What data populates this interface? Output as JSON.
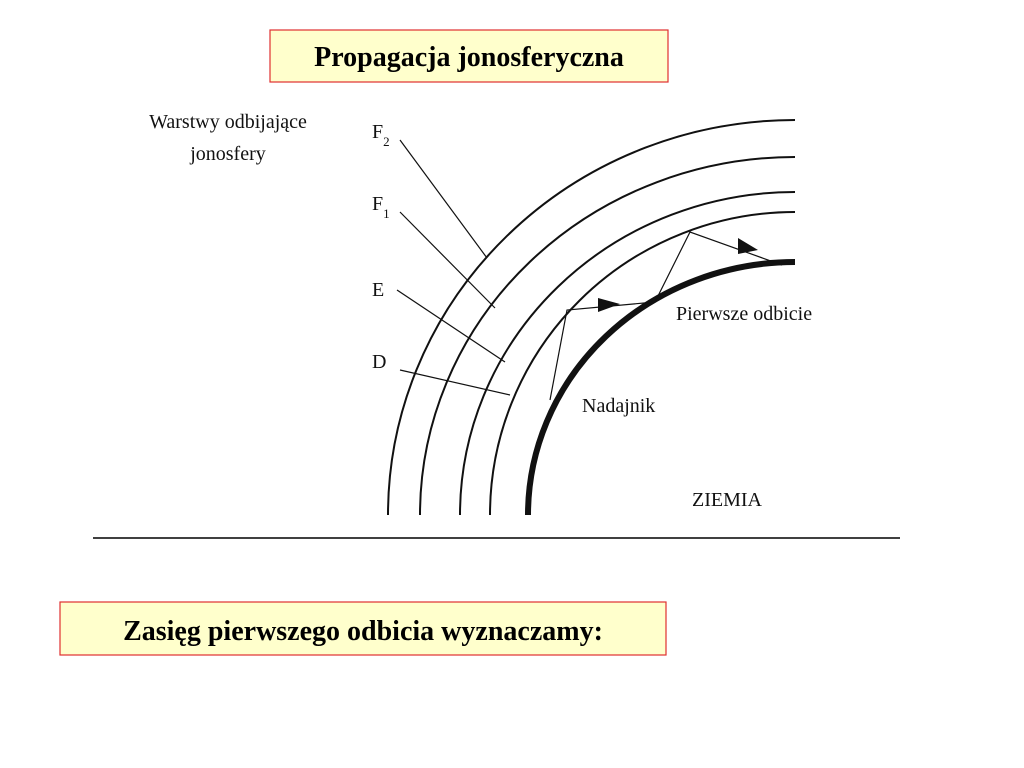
{
  "header": {
    "title": "Propagacja jonosferyczna"
  },
  "diagram": {
    "caption": [
      "Warstwy odbijające",
      "jonosfery"
    ],
    "layers": [
      {
        "name": "F",
        "sub": "2"
      },
      {
        "name": "F",
        "sub": "1"
      },
      {
        "name": "E"
      },
      {
        "name": "D"
      }
    ],
    "first_reflection": "Pierwsze odbicie",
    "transmitter": "Nadajnik",
    "earth": "ZIEMIA"
  },
  "footer": {
    "text": "Zasięg pierwszego odbicia wyznaczamy:"
  }
}
